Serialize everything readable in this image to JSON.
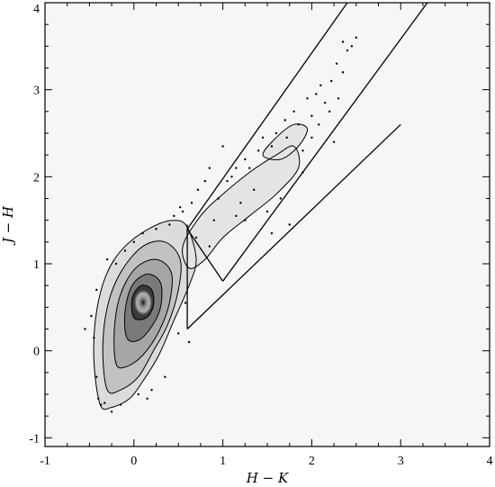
{
  "chart_data": {
    "type": "scatter",
    "title": "",
    "xlabel": "H − K",
    "ylabel": "J − H",
    "xlim": [
      -1,
      4
    ],
    "ylim": [
      -1.1,
      4
    ],
    "xticks": [
      -1,
      0,
      1,
      2,
      3,
      4
    ],
    "yticks": [
      -1,
      0,
      1,
      2,
      3,
      4
    ],
    "xtick_labels": [
      "-1",
      "0",
      "1",
      "2",
      "3",
      "4"
    ],
    "ytick_labels": [
      "-1",
      "0",
      "1",
      "2",
      "3",
      "4"
    ],
    "grid": false,
    "colors": {
      "density_dark": "#111111",
      "density_light": "#e6e6e6",
      "lines": "#000000"
    },
    "reference_lines": [
      {
        "name": "band-left-boundary",
        "x": [
          0.6,
          2.4
        ],
        "y": [
          1.4,
          4.0
        ]
      },
      {
        "name": "band-right-boundary",
        "x": [
          1.0,
          3.3
        ],
        "y": [
          0.8,
          4.0
        ]
      },
      {
        "name": "band-lower-boundary",
        "x": [
          0.6,
          3.0
        ],
        "y": [
          0.25,
          2.6
        ]
      },
      {
        "name": "vertical-divider",
        "x": [
          0.6,
          0.6
        ],
        "y": [
          0.25,
          1.45
        ]
      },
      {
        "name": "cross-segment",
        "x": [
          0.6,
          1.0
        ],
        "y": [
          1.4,
          0.8
        ]
      }
    ],
    "density_contours": [
      {
        "level": 1,
        "points": [
          [
            -0.38,
            -0.62
          ],
          [
            -0.45,
            -0.1
          ],
          [
            -0.42,
            0.45
          ],
          [
            -0.3,
            0.9
          ],
          [
            -0.1,
            1.2
          ],
          [
            0.2,
            1.42
          ],
          [
            0.45,
            1.5
          ],
          [
            0.6,
            1.42
          ],
          [
            0.7,
            1.05
          ],
          [
            0.62,
            0.75
          ],
          [
            0.45,
            0.35
          ],
          [
            0.28,
            -0.05
          ],
          [
            0.1,
            -0.35
          ],
          [
            -0.05,
            -0.55
          ],
          [
            -0.25,
            -0.65
          ]
        ]
      },
      {
        "level": 2,
        "points": [
          [
            -0.3,
            -0.45
          ],
          [
            -0.35,
            0.0
          ],
          [
            -0.3,
            0.5
          ],
          [
            -0.15,
            0.9
          ],
          [
            0.1,
            1.2
          ],
          [
            0.35,
            1.25
          ],
          [
            0.52,
            1.05
          ],
          [
            0.5,
            0.7
          ],
          [
            0.38,
            0.3
          ],
          [
            0.22,
            0.0
          ],
          [
            0.05,
            -0.3
          ],
          [
            -0.15,
            -0.45
          ]
        ]
      },
      {
        "level": 3,
        "points": [
          [
            -0.2,
            -0.15
          ],
          [
            -0.22,
            0.25
          ],
          [
            -0.15,
            0.65
          ],
          [
            0.02,
            0.95
          ],
          [
            0.25,
            1.05
          ],
          [
            0.42,
            0.9
          ],
          [
            0.4,
            0.55
          ],
          [
            0.28,
            0.22
          ],
          [
            0.1,
            -0.05
          ],
          [
            -0.08,
            -0.18
          ]
        ]
      },
      {
        "level": 4,
        "points": [
          [
            -0.08,
            0.15
          ],
          [
            -0.1,
            0.45
          ],
          [
            -0.02,
            0.75
          ],
          [
            0.15,
            0.88
          ],
          [
            0.3,
            0.78
          ],
          [
            0.3,
            0.5
          ],
          [
            0.2,
            0.28
          ],
          [
            0.05,
            0.12
          ]
        ]
      },
      {
        "level": 5,
        "points": [
          [
            0.0,
            0.38
          ],
          [
            -0.02,
            0.6
          ],
          [
            0.08,
            0.75
          ],
          [
            0.2,
            0.7
          ],
          [
            0.22,
            0.52
          ],
          [
            0.14,
            0.38
          ]
        ]
      }
    ],
    "band_contours": [
      {
        "points": [
          [
            0.55,
            1.2
          ],
          [
            0.75,
            1.55
          ],
          [
            1.0,
            1.8
          ],
          [
            1.3,
            2.05
          ],
          [
            1.6,
            2.25
          ],
          [
            1.8,
            2.35
          ],
          [
            1.85,
            2.1
          ],
          [
            1.6,
            1.8
          ],
          [
            1.3,
            1.55
          ],
          [
            1.0,
            1.3
          ],
          [
            0.8,
            1.05
          ],
          [
            0.62,
            0.95
          ]
        ]
      },
      {
        "points": [
          [
            1.45,
            2.25
          ],
          [
            1.6,
            2.45
          ],
          [
            1.8,
            2.6
          ],
          [
            1.95,
            2.55
          ],
          [
            1.85,
            2.35
          ],
          [
            1.65,
            2.2
          ]
        ]
      }
    ],
    "scatter_points": [
      [
        -0.55,
        0.25
      ],
      [
        -0.48,
        0.4
      ],
      [
        -0.45,
        0.15
      ],
      [
        -0.42,
        -0.3
      ],
      [
        -0.4,
        -0.55
      ],
      [
        -0.37,
        -0.62
      ],
      [
        -0.33,
        -0.6
      ],
      [
        -0.25,
        -0.7
      ],
      [
        -0.15,
        -0.62
      ],
      [
        -0.2,
        1.0
      ],
      [
        -0.1,
        1.15
      ],
      [
        0.0,
        1.25
      ],
      [
        0.1,
        1.35
      ],
      [
        0.15,
        -0.55
      ],
      [
        0.2,
        -0.45
      ],
      [
        0.35,
        -0.3
      ],
      [
        0.05,
        -0.5
      ],
      [
        0.45,
        1.55
      ],
      [
        0.55,
        1.6
      ],
      [
        0.52,
        1.65
      ],
      [
        0.65,
        1.7
      ],
      [
        0.72,
        1.85
      ],
      [
        0.8,
        1.95
      ],
      [
        0.85,
        2.1
      ],
      [
        0.9,
        1.5
      ],
      [
        0.95,
        1.75
      ],
      [
        1.0,
        2.35
      ],
      [
        1.05,
        1.95
      ],
      [
        1.1,
        2.0
      ],
      [
        1.15,
        2.1
      ],
      [
        1.2,
        1.7
      ],
      [
        1.25,
        2.2
      ],
      [
        1.3,
        2.1
      ],
      [
        1.35,
        1.85
      ],
      [
        1.4,
        2.3
      ],
      [
        1.45,
        2.45
      ],
      [
        1.5,
        1.6
      ],
      [
        1.55,
        2.35
      ],
      [
        1.6,
        2.5
      ],
      [
        1.65,
        1.75
      ],
      [
        1.7,
        2.65
      ],
      [
        1.72,
        2.45
      ],
      [
        1.75,
        1.45
      ],
      [
        1.8,
        2.75
      ],
      [
        1.85,
        2.6
      ],
      [
        1.9,
        2.3
      ],
      [
        1.95,
        2.9
      ],
      [
        2.0,
        2.7
      ],
      [
        2.05,
        2.95
      ],
      [
        2.08,
        2.6
      ],
      [
        2.1,
        3.05
      ],
      [
        2.15,
        2.85
      ],
      [
        2.2,
        2.75
      ],
      [
        2.22,
        3.1
      ],
      [
        2.25,
        2.4
      ],
      [
        2.28,
        3.3
      ],
      [
        2.3,
        2.9
      ],
      [
        2.35,
        3.2
      ],
      [
        2.4,
        3.45
      ],
      [
        2.45,
        3.5
      ],
      [
        2.5,
        3.6
      ],
      [
        2.35,
        3.55
      ],
      [
        1.15,
        1.55
      ],
      [
        1.25,
        1.5
      ],
      [
        0.7,
        1.3
      ],
      [
        0.85,
        1.2
      ],
      [
        1.55,
        1.35
      ],
      [
        0.4,
        1.45
      ],
      [
        1.9,
        2.05
      ],
      [
        2.0,
        2.45
      ],
      [
        -0.3,
        1.05
      ],
      [
        -0.42,
        0.7
      ],
      [
        0.25,
        1.4
      ],
      [
        0.5,
        0.2
      ],
      [
        0.58,
        0.55
      ],
      [
        0.62,
        0.1
      ]
    ]
  }
}
